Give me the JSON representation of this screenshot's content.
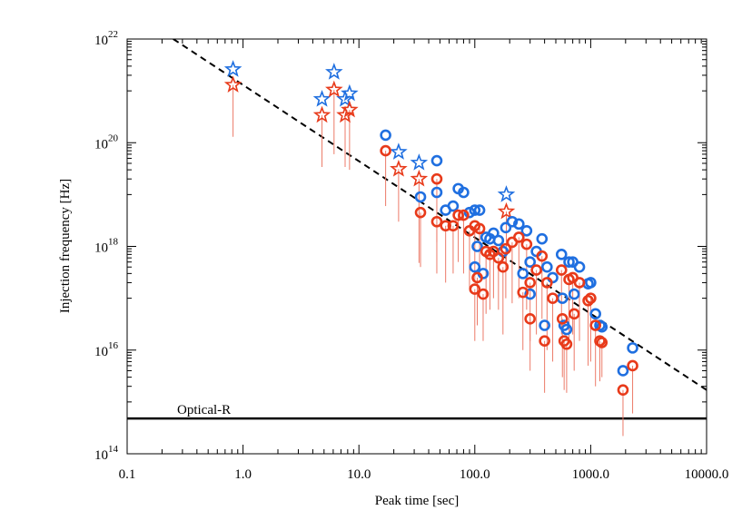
{
  "chart_data": {
    "type": "scatter",
    "x_label": "Peak time [sec]",
    "y_label": "Injection frequency [Hz]",
    "xscale": "log",
    "yscale": "log",
    "xlim": [
      0.1,
      10000
    ],
    "ylim": [
      100000000000000.0,
      1e+22
    ],
    "xticks": [
      0.1,
      {
        "value": 1,
        "label": "1.0"
      },
      {
        "value": 10,
        "label": "10.0"
      },
      {
        "value": 100,
        "label": "100.0"
      },
      {
        "value": 1000,
        "label": "1000.0"
      },
      {
        "value": 10000,
        "label": "10000.0"
      }
    ],
    "yticks": [
      {
        "value": 100000000000000.0,
        "label": "10",
        "exponent": "14"
      },
      {
        "value": 1e+16,
        "label": "10",
        "exponent": "16"
      },
      {
        "value": 1e+18,
        "label": "10",
        "exponent": "18"
      },
      {
        "value": 1e+20,
        "label": "10",
        "exponent": "20"
      },
      {
        "value": 1e+22,
        "label": "10",
        "exponent": "22"
      }
    ],
    "fit_line": {
      "color": "#000000",
      "x": [
        0.25,
        10000
      ],
      "y": [
        1e+22,
        1700000000000000.0
      ]
    },
    "reference_line": {
      "label": "Optical-R",
      "value": 480000000000000.0,
      "color": "#000000"
    },
    "series": [
      {
        "marker": "star",
        "color": "#1f6fe0",
        "x": [
          0.82,
          4.8,
          6.1,
          7.6,
          8.3,
          22,
          33,
          187
        ],
        "values": [
          2.6e+21,
          6.9e+20,
          2.3e+21,
          6.9e+20,
          8.9e+20,
          6.6e+19,
          4.1e+19,
          1e+19
        ]
      },
      {
        "marker": "star",
        "color": "#e83a1a",
        "error_color": "#ec7a68",
        "x": [
          0.82,
          4.8,
          6.1,
          7.6,
          8.3,
          22,
          33,
          187
        ],
        "values": [
          1.3e+21,
          3.4e+20,
          1.05e+21,
          3.4e+20,
          4.3e+20,
          3.1e+19,
          2e+19,
          4.7e+18
        ],
        "error_low": [
          1.3e+20,
          3.4e+19,
          6e+19,
          3.4e+19,
          3e+19,
          3e+18,
          4.8e+17,
          4.8e+17
        ]
      },
      {
        "marker": "circle",
        "color": "#1f6fe0",
        "x": [
          17,
          34,
          47,
          47,
          56,
          65,
          72,
          80,
          90,
          100,
          100,
          105,
          110,
          118,
          125,
          135,
          145,
          160,
          175,
          185,
          210,
          240,
          260,
          280,
          300,
          300,
          340,
          380,
          400,
          420,
          470,
          560,
          570,
          590,
          620,
          650,
          700,
          720,
          800,
          950,
          1000,
          1100,
          1200,
          1250,
          1900,
          2300
        ],
        "values": [
          1.4e+20,
          9e+18,
          4.5e+19,
          1.1e+19,
          5e+18,
          6e+18,
          1.3e+19,
          1.1e+19,
          4.5e+18,
          5e+18,
          4e+17,
          1e+18,
          5e+18,
          3e+17,
          1.5e+18,
          1.4e+18,
          1.8e+18,
          1.3e+18,
          8e+17,
          2.3e+18,
          3e+18,
          2.7e+18,
          3e+17,
          2e+18,
          5e+17,
          1.2e+17,
          8e+17,
          1.4e+18,
          3e+16,
          4e+17,
          2.5e+17,
          7e+17,
          1e+17,
          3e+16,
          2.5e+16,
          5e+17,
          5e+17,
          1.2e+17,
          4e+17,
          1.9e+17,
          2e+17,
          5e+16,
          3e+16,
          2.8e+16,
          4000000000000000.0,
          1.1e+16
        ]
      },
      {
        "marker": "circle",
        "color": "#e83a1a",
        "error_color": "#ec7a68",
        "x": [
          17,
          34,
          47,
          47,
          56,
          65,
          72,
          80,
          90,
          100,
          100,
          105,
          110,
          118,
          125,
          135,
          145,
          160,
          175,
          185,
          210,
          240,
          260,
          280,
          300,
          300,
          340,
          380,
          400,
          420,
          470,
          560,
          570,
          590,
          620,
          650,
          700,
          720,
          800,
          950,
          1000,
          1100,
          1200,
          1250,
          1900,
          2300
        ],
        "values": [
          7e+19,
          4.5e+18,
          2e+19,
          3e+18,
          2.5e+18,
          2.5e+18,
          4e+18,
          4e+18,
          2e+18,
          2.5e+18,
          1.5e+17,
          2.5e+17,
          2.2e+18,
          1.2e+17,
          8e+17,
          7e+17,
          8e+17,
          6e+17,
          4e+17,
          9e+17,
          1.2e+18,
          1.5e+18,
          1.3e+17,
          1.1e+18,
          2e+17,
          4e+16,
          3.5e+17,
          6.5e+17,
          1.5e+16,
          2e+17,
          1e+17,
          3.5e+17,
          4e+16,
          1.5e+16,
          1.3e+16,
          2.3e+17,
          2.5e+17,
          5e+16,
          2e+17,
          9e+16,
          1e+17,
          3e+16,
          1.5e+16,
          1.4e+16,
          1700000000000000.0,
          5000000000000000.0
        ],
        "error_low": [
          6e+18,
          4e+17,
          1.2e+18,
          3e+17,
          2e+17,
          3e+17,
          5e+17,
          3e+17,
          1.5e+17,
          2e+17,
          1.5e+16,
          3e+16,
          3e+17,
          1.5e+16,
          5e+16,
          6e+16,
          1e+17,
          6e+16,
          2e+16,
          1e+17,
          8e+16,
          1e+17,
          1e+16,
          6e+16,
          1.5e+16,
          4000000000000000.0,
          2e+16,
          4e+16,
          1500000000000000.0,
          1e+16,
          6000000000000000.0,
          2e+16,
          3000000000000000.0,
          1700000000000000.0,
          1500000000000000.0,
          1.5e+16,
          2e+16,
          4000000000000000.0,
          1.5e+16,
          5000000000000000.0,
          6000000000000000.0,
          2000000000000000.0,
          2500000000000000.0,
          3000000000000000.0,
          220000000000000.0,
          600000000000000.0
        ]
      }
    ]
  }
}
